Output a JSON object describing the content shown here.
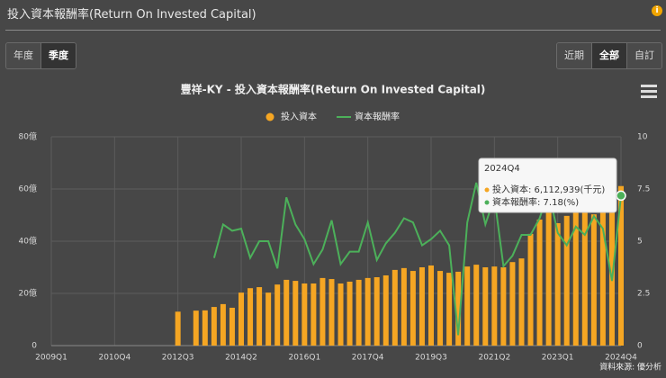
{
  "ui": {
    "header": "投入資本報酬率(Return On Invested Capital)",
    "info": "i",
    "period_buttons": [
      "年度",
      "季度"
    ],
    "active_period": 1,
    "range_buttons": [
      "近期",
      "全部",
      "自訂"
    ],
    "active_range": 1,
    "source": "資料來源: 優分析"
  },
  "tooltip": {
    "title": "2024Q4",
    "lines": [
      "投入資本: 6,112,939(千元)",
      "資本報酬率: 7.18(%)"
    ]
  },
  "chart_data": {
    "type": "bar_line",
    "title": "豐祥-KY - 投入資本報酬率(Return On Invested Capital)",
    "categories": [
      "2009Q1",
      null,
      null,
      null,
      null,
      null,
      null,
      "2010Q4",
      null,
      null,
      null,
      null,
      null,
      null,
      "2012Q3",
      null,
      null,
      null,
      null,
      null,
      null,
      "2014Q2",
      null,
      null,
      null,
      null,
      null,
      null,
      "2016Q1",
      null,
      null,
      null,
      null,
      null,
      null,
      "2017Q4",
      null,
      null,
      null,
      null,
      null,
      null,
      "2019Q3",
      null,
      null,
      null,
      null,
      null,
      null,
      "2021Q2",
      null,
      null,
      null,
      null,
      null,
      null,
      "2023Q1",
      null,
      null,
      null,
      null,
      null,
      null,
      "2024Q4"
    ],
    "series": [
      {
        "name": "投入資本",
        "color": "#f5a623",
        "kind": "bar",
        "values": [
          null,
          null,
          null,
          null,
          null,
          null,
          null,
          null,
          null,
          null,
          null,
          null,
          null,
          null,
          13,
          null,
          13.4,
          13.5,
          14.8,
          15.9,
          14.5,
          20.3,
          22,
          22.4,
          20.3,
          23.4,
          25.2,
          24.8,
          23.8,
          23.8,
          25.9,
          25.5,
          23.8,
          24.5,
          25.2,
          25.9,
          26.2,
          26.9,
          29,
          29.7,
          28.6,
          30,
          30.7,
          28.6,
          27.9,
          28.3,
          30.3,
          31,
          30,
          30.3,
          30,
          32,
          33.4,
          42.8,
          48.3,
          51.4,
          46.9,
          49.7,
          52.4,
          52.8,
          50.3,
          54.8,
          56,
          61.13
        ]
      },
      {
        "name": "資本報酬率",
        "color": "#4cb05a",
        "kind": "line",
        "axis": "y2",
        "values": [
          null,
          null,
          null,
          null,
          null,
          null,
          null,
          null,
          null,
          null,
          null,
          null,
          null,
          null,
          null,
          null,
          null,
          null,
          4.2,
          5.8,
          5.5,
          5.6,
          4.2,
          5.0,
          5.0,
          3.7,
          7.1,
          5.8,
          5.1,
          3.9,
          4.6,
          6.0,
          3.9,
          4.5,
          4.5,
          5.9,
          4.1,
          4.9,
          5.4,
          6.1,
          5.9,
          4.8,
          5.1,
          5.5,
          4.8,
          0.5,
          5.9,
          7.8,
          5.8,
          7.1,
          3.8,
          4.3,
          5.3,
          5.3,
          6.1,
          7.4,
          5.4,
          4.8,
          5.7,
          5.3,
          6.2,
          5.6,
          3.1,
          7.18
        ]
      }
    ],
    "ylim": [
      0,
      80
    ],
    "yticks": [
      0,
      {
        "value": 20,
        "label": "20億"
      },
      {
        "value": 40,
        "label": "40億"
      },
      {
        "value": 60,
        "label": "60億"
      },
      {
        "value": 80,
        "label": "80億"
      }
    ],
    "y2lim": [
      0,
      10
    ],
    "y2ticks": [
      0,
      2.5,
      5,
      7.5,
      10
    ],
    "grid": true,
    "legend": "top"
  }
}
